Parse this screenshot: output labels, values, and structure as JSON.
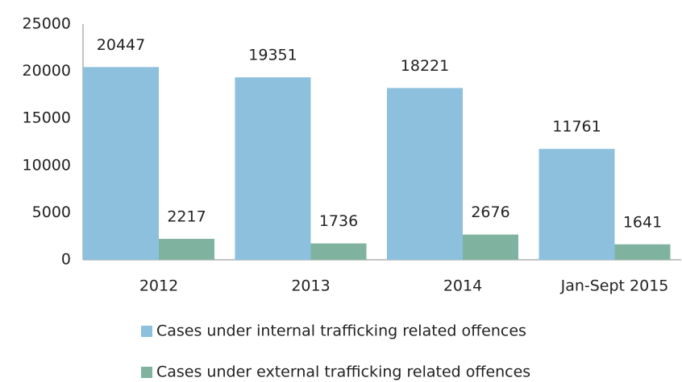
{
  "chart_data": {
    "type": "bar",
    "categories": [
      "2012",
      "2013",
      "2014",
      "Jan-Sept 2015"
    ],
    "series": [
      {
        "name": "Cases under internal trafficking related offences",
        "color": "#8cc0dd",
        "values": [
          20447,
          19351,
          18221,
          11761
        ]
      },
      {
        "name": "Cases under external trafficking related offences",
        "color": "#7fb3a0",
        "values": [
          2217,
          1736,
          2676,
          1641
        ]
      }
    ],
    "ylim": [
      0,
      25000
    ],
    "yticks": [
      0,
      5000,
      10000,
      15000,
      20000,
      25000
    ],
    "grid": false,
    "legend": "bottom"
  }
}
